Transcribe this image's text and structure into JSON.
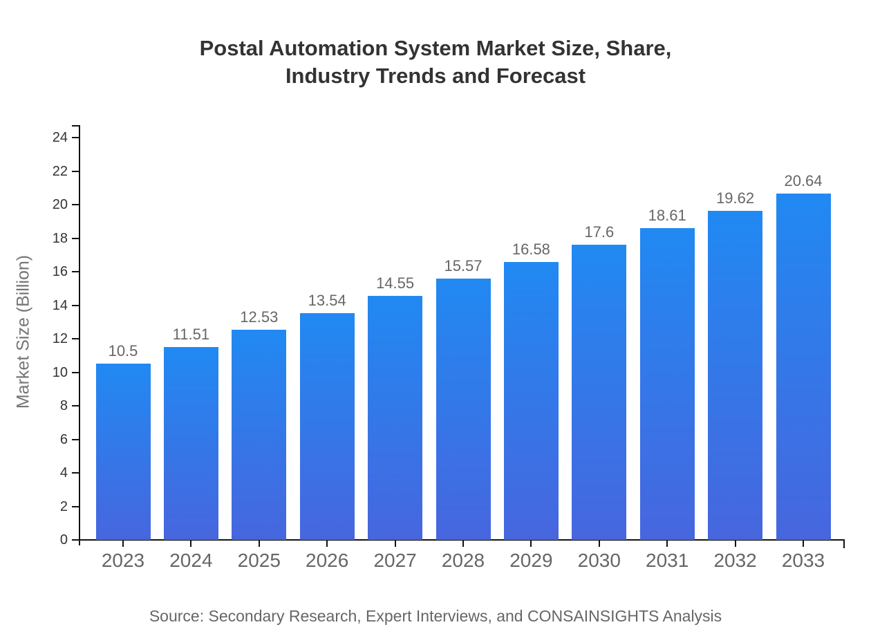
{
  "page": {
    "background": "#ffffff"
  },
  "chart_data": {
    "type": "bar",
    "title": "Postal Automation System Market Size, Share, Industry Trends and Forecast",
    "title_lines": [
      "Postal Automation System Market Size, Share,",
      "Industry Trends and Forecast"
    ],
    "xlabel": "",
    "ylabel": "Market Size (Billion)",
    "source": "Source: Secondary Research, Expert Interviews, and CONSAINSIGHTS Analysis",
    "categories": [
      "2023",
      "2024",
      "2025",
      "2026",
      "2027",
      "2028",
      "2029",
      "2030",
      "2031",
      "2032",
      "2033"
    ],
    "values": [
      10.5,
      11.51,
      12.53,
      13.54,
      14.55,
      15.57,
      16.58,
      17.6,
      18.61,
      19.62,
      20.64
    ],
    "value_labels": [
      "10.5",
      "11.51",
      "12.53",
      "13.54",
      "14.55",
      "15.57",
      "16.58",
      "17.6",
      "18.61",
      "19.62",
      "20.64"
    ],
    "yticks": [
      0,
      2,
      4,
      6,
      8,
      10,
      12,
      14,
      16,
      18,
      20,
      22,
      24
    ],
    "ylim": [
      0,
      24
    ],
    "grid": false,
    "legend": null,
    "colors": {
      "bar_top": "#2189f2",
      "bar_bottom": "#4766de",
      "axis": "#111111",
      "title_text": "#333333",
      "y_tick_text": "#333333",
      "category_text": "#666666",
      "value_text": "#666666",
      "axis_title_text": "#757575",
      "source_text": "#666666"
    }
  }
}
